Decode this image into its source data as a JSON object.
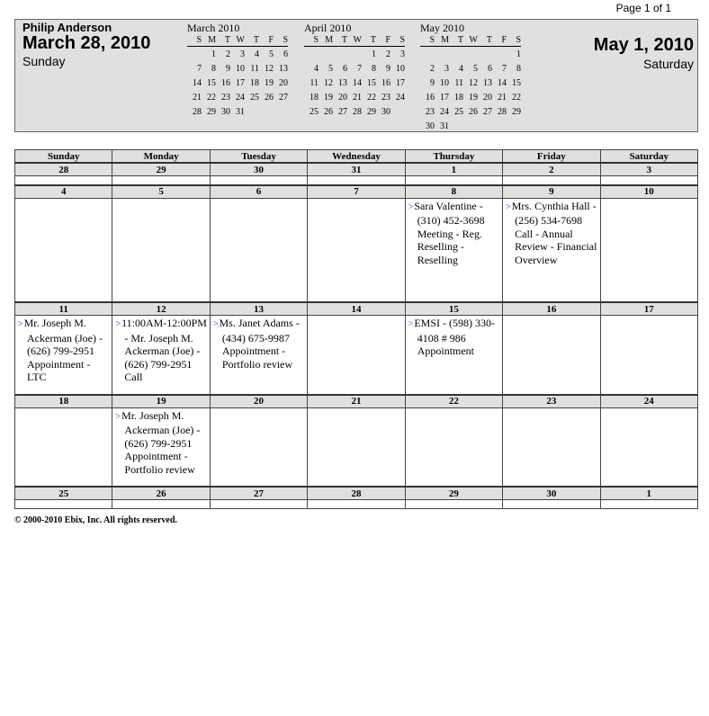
{
  "page": "Page 1 of 1",
  "header": {
    "name": "Philip Anderson",
    "start_date": "March 28, 2010",
    "start_day": "Sunday",
    "end_date": "May 1, 2010",
    "end_day": "Saturday"
  },
  "mini_calendars": [
    {
      "title": "March 2010",
      "days": [
        "S",
        "M",
        "T",
        "W",
        "T",
        "F",
        "S"
      ],
      "cells": [
        "",
        "1",
        "2",
        "3",
        "4",
        "5",
        "6",
        "7",
        "8",
        "9",
        "10",
        "11",
        "12",
        "13",
        "14",
        "15",
        "16",
        "17",
        "18",
        "19",
        "20",
        "21",
        "22",
        "23",
        "24",
        "25",
        "26",
        "27",
        "28",
        "29",
        "30",
        "31"
      ]
    },
    {
      "title": "April 2010",
      "days": [
        "S",
        "M",
        "T",
        "W",
        "T",
        "F",
        "S"
      ],
      "cells": [
        "",
        "",
        "",
        "",
        "1",
        "2",
        "3",
        "4",
        "5",
        "6",
        "7",
        "8",
        "9",
        "10",
        "11",
        "12",
        "13",
        "14",
        "15",
        "16",
        "17",
        "18",
        "19",
        "20",
        "21",
        "22",
        "23",
        "24",
        "25",
        "26",
        "27",
        "28",
        "29",
        "30"
      ]
    },
    {
      "title": "May 2010",
      "days": [
        "S",
        "M",
        "T",
        "W",
        "T",
        "F",
        "S"
      ],
      "cells": [
        "",
        "",
        "",
        "",
        "",
        "",
        "1",
        "2",
        "3",
        "4",
        "5",
        "6",
        "7",
        "8",
        "9",
        "10",
        "11",
        "12",
        "13",
        "14",
        "15",
        "16",
        "17",
        "18",
        "19",
        "20",
        "21",
        "22",
        "23",
        "24",
        "25",
        "26",
        "27",
        "28",
        "29",
        "30",
        "31"
      ]
    }
  ],
  "weekdays": [
    "Sunday",
    "Monday",
    "Tuesday",
    "Wednesday",
    "Thursday",
    "Friday",
    "Saturday"
  ],
  "weeks": [
    {
      "dates": [
        "28",
        "29",
        "30",
        "31",
        "1",
        "2",
        "3"
      ],
      "events": [
        [],
        [],
        [],
        [],
        [],
        [],
        []
      ]
    },
    {
      "dates": [
        "4",
        "5",
        "6",
        "7",
        "8",
        "9",
        "10"
      ],
      "events": [
        [],
        [],
        [],
        [],
        [
          "Sara Valentine - (310) 452-3698 Meeting - Reg. Reselling - Reselling"
        ],
        [
          "Mrs. Cynthia Hall - (256) 534-7698 Call - Annual Review - Financial Overview"
        ],
        []
      ]
    },
    {
      "dates": [
        "11",
        "12",
        "13",
        "14",
        "15",
        "16",
        "17"
      ],
      "events": [
        [
          "Mr. Joseph M. Ackerman (Joe) - (626) 799-2951 Appointment - LTC"
        ],
        [
          "11:00AM-12:00PM - Mr. Joseph M. Ackerman (Joe) - (626) 799-2951 Call"
        ],
        [
          "Ms. Janet Adams - (434) 675-9987 Appointment - Portfolio review"
        ],
        [],
        [
          "EMSI - (598) 330-4108 # 986 Appointment"
        ],
        [],
        []
      ]
    },
    {
      "dates": [
        "18",
        "19",
        "20",
        "21",
        "22",
        "23",
        "24"
      ],
      "events": [
        [],
        [
          "Mr. Joseph M. Ackerman (Joe) - (626) 799-2951 Appointment - Portfolio review"
        ],
        [],
        [],
        [],
        [],
        []
      ]
    },
    {
      "dates": [
        "25",
        "26",
        "27",
        "28",
        "29",
        "30",
        "1"
      ],
      "events": [
        [],
        [],
        [],
        [],
        [],
        [],
        []
      ]
    }
  ],
  "footer": "© 2000-2010 Ebix, Inc. All rights reserved.",
  "colors": {
    "header_bg": "#e0e0e0",
    "event_arrow": "#3a3ae0"
  },
  "icons": {
    "event_marker": "arrow-right-icon"
  }
}
